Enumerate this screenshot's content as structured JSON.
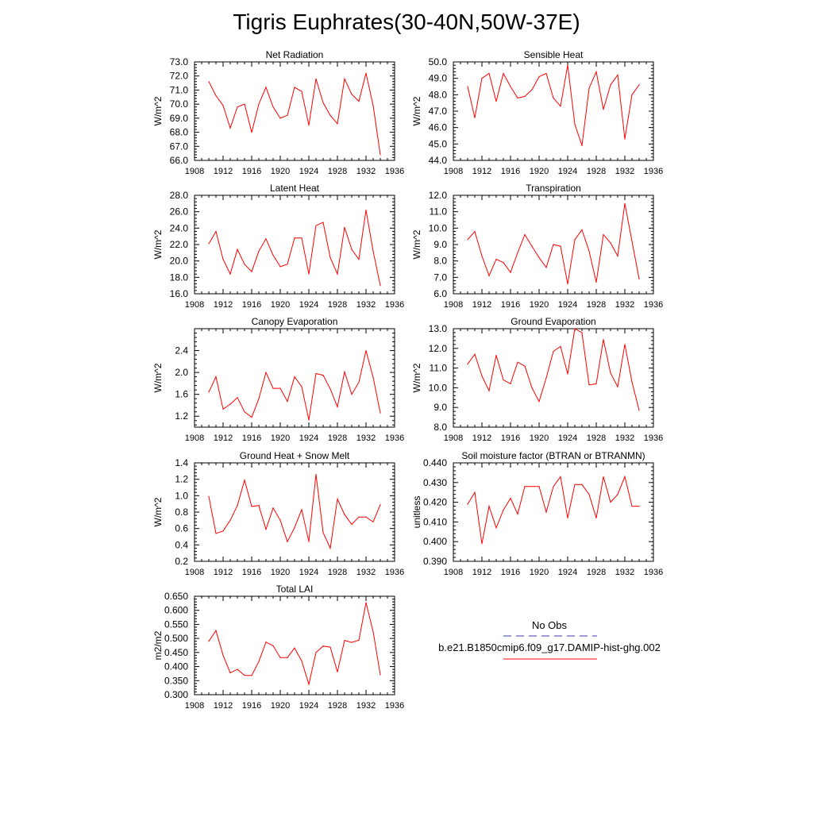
{
  "title": "Tigris Euphrates(30-40N,50W-37E)",
  "colors": {
    "model": "#ff0000",
    "obs": "#3a3aa8",
    "axis": "#000000"
  },
  "legend": {
    "obs_label": "No Obs",
    "model_label": "b.e21.B1850cmip6.f09_g17.DAMIP-hist-ghg.002"
  },
  "chart_data": [
    {
      "type": "line",
      "title": "Net Radiation",
      "ylabel": "W/m^2",
      "xlim": [
        1908,
        1936
      ],
      "xticks": [
        1908,
        1912,
        1916,
        1920,
        1924,
        1928,
        1932,
        1936
      ],
      "ylim": [
        66.0,
        73.0
      ],
      "yticks": [
        "66.0",
        "67.0",
        "68.0",
        "69.0",
        "70.0",
        "71.0",
        "72.0",
        "73.0"
      ],
      "x": [
        1910,
        1911,
        1912,
        1913,
        1914,
        1915,
        1916,
        1917,
        1918,
        1919,
        1920,
        1921,
        1922,
        1923,
        1924,
        1925,
        1926,
        1927,
        1928,
        1929,
        1930,
        1931,
        1932,
        1933,
        1934
      ],
      "series": [
        {
          "values": [
            71.6,
            70.6,
            69.9,
            68.3,
            69.8,
            70.0,
            68.0,
            70.0,
            71.2,
            69.8,
            69.0,
            69.2,
            71.2,
            70.9,
            68.5,
            71.8,
            70.1,
            69.2,
            68.6,
            71.8,
            70.7,
            70.2,
            72.2,
            69.9,
            66.4
          ]
        }
      ]
    },
    {
      "type": "line",
      "title": "Sensible Heat",
      "ylabel": "W/m^2",
      "xlim": [
        1908,
        1936
      ],
      "xticks": [
        1908,
        1912,
        1916,
        1920,
        1924,
        1928,
        1932,
        1936
      ],
      "ylim": [
        44.0,
        50.0
      ],
      "yticks": [
        "44.0",
        "45.0",
        "46.0",
        "47.0",
        "48.0",
        "49.0",
        "50.0"
      ],
      "x": [
        1910,
        1911,
        1912,
        1913,
        1914,
        1915,
        1916,
        1917,
        1918,
        1919,
        1920,
        1921,
        1922,
        1923,
        1924,
        1925,
        1926,
        1927,
        1928,
        1929,
        1930,
        1931,
        1932,
        1933,
        1934
      ],
      "series": [
        {
          "values": [
            48.5,
            46.6,
            49.0,
            49.3,
            47.6,
            49.3,
            48.5,
            47.8,
            47.9,
            48.3,
            49.1,
            49.3,
            47.8,
            47.3,
            49.8,
            46.2,
            44.9,
            48.4,
            49.4,
            47.1,
            48.6,
            49.2,
            45.3,
            48.0,
            48.6
          ]
        }
      ]
    },
    {
      "type": "line",
      "title": "Latent Heat",
      "ylabel": "W/m^2",
      "xlim": [
        1908,
        1936
      ],
      "xticks": [
        1908,
        1912,
        1916,
        1920,
        1924,
        1928,
        1932,
        1936
      ],
      "ylim": [
        16.0,
        28.0
      ],
      "yticks": [
        "16.0",
        "18.0",
        "20.0",
        "22.0",
        "24.0",
        "26.0",
        "28.0"
      ],
      "x": [
        1910,
        1911,
        1912,
        1913,
        1914,
        1915,
        1916,
        1917,
        1918,
        1919,
        1920,
        1921,
        1922,
        1923,
        1924,
        1925,
        1926,
        1927,
        1928,
        1929,
        1930,
        1931,
        1932,
        1933,
        1934
      ],
      "series": [
        {
          "values": [
            22.1,
            23.6,
            20.2,
            18.4,
            21.4,
            19.6,
            18.7,
            21.2,
            22.7,
            20.7,
            19.3,
            19.6,
            22.8,
            22.8,
            18.4,
            24.3,
            24.7,
            20.4,
            18.4,
            24.1,
            21.4,
            20.2,
            26.2,
            21.2,
            17.0
          ]
        }
      ]
    },
    {
      "type": "line",
      "title": "Transpiration",
      "ylabel": "W/m^2",
      "xlim": [
        1908,
        1936
      ],
      "xticks": [
        1908,
        1912,
        1916,
        1920,
        1924,
        1928,
        1932,
        1936
      ],
      "ylim": [
        6.0,
        12.0
      ],
      "yticks": [
        "6.0",
        "7.0",
        "8.0",
        "9.0",
        "10.0",
        "11.0",
        "12.0"
      ],
      "x": [
        1910,
        1911,
        1912,
        1913,
        1914,
        1915,
        1916,
        1917,
        1918,
        1919,
        1920,
        1921,
        1922,
        1923,
        1924,
        1925,
        1926,
        1927,
        1928,
        1929,
        1930,
        1931,
        1932,
        1933,
        1934
      ],
      "series": [
        {
          "values": [
            9.3,
            9.8,
            8.3,
            7.1,
            8.1,
            7.9,
            7.3,
            8.5,
            9.6,
            8.9,
            8.2,
            7.6,
            9.0,
            8.9,
            6.6,
            9.3,
            9.9,
            8.6,
            6.7,
            9.6,
            9.1,
            8.3,
            11.5,
            9.2,
            6.9
          ]
        }
      ]
    },
    {
      "type": "line",
      "title": "Canopy Evaporation",
      "ylabel": "W/m^2",
      "xlim": [
        1908,
        1936
      ],
      "xticks": [
        1908,
        1912,
        1916,
        1920,
        1924,
        1928,
        1932,
        1936
      ],
      "ylim": [
        1.0,
        2.8
      ],
      "yticks": [
        "1.2",
        "1.6",
        "2.0",
        "2.4"
      ],
      "x": [
        1910,
        1911,
        1912,
        1913,
        1914,
        1915,
        1916,
        1917,
        1918,
        1919,
        1920,
        1921,
        1922,
        1923,
        1924,
        1925,
        1926,
        1927,
        1928,
        1929,
        1930,
        1931,
        1932,
        1933,
        1934
      ],
      "series": [
        {
          "values": [
            1.64,
            1.92,
            1.33,
            1.42,
            1.54,
            1.28,
            1.18,
            1.52,
            2.0,
            1.71,
            1.71,
            1.47,
            1.92,
            1.74,
            1.13,
            1.98,
            1.95,
            1.7,
            1.37,
            2.01,
            1.6,
            1.82,
            2.4,
            1.91,
            1.26
          ]
        }
      ]
    },
    {
      "type": "line",
      "title": "Ground Evaporation",
      "ylabel": "W/m^2",
      "xlim": [
        1908,
        1936
      ],
      "xticks": [
        1908,
        1912,
        1916,
        1920,
        1924,
        1928,
        1932,
        1936
      ],
      "ylim": [
        8.0,
        13.0
      ],
      "yticks": [
        "8.0",
        "9.0",
        "10.0",
        "11.0",
        "12.0",
        "13.0"
      ],
      "x": [
        1910,
        1911,
        1912,
        1913,
        1914,
        1915,
        1916,
        1917,
        1918,
        1919,
        1920,
        1921,
        1922,
        1923,
        1924,
        1925,
        1926,
        1927,
        1928,
        1929,
        1930,
        1931,
        1932,
        1933,
        1934
      ],
      "series": [
        {
          "values": [
            11.2,
            11.7,
            10.6,
            9.85,
            11.65,
            10.4,
            10.2,
            11.3,
            11.1,
            10.0,
            9.3,
            10.5,
            11.85,
            12.1,
            10.7,
            13.0,
            12.8,
            10.15,
            10.2,
            12.45,
            10.75,
            10.05,
            12.2,
            10.3,
            8.85
          ]
        }
      ]
    },
    {
      "type": "line",
      "title": "Ground Heat + Snow Melt",
      "ylabel": "W/m^2",
      "xlim": [
        1908,
        1936
      ],
      "xticks": [
        1908,
        1912,
        1916,
        1920,
        1924,
        1928,
        1932,
        1936
      ],
      "ylim": [
        0.2,
        1.4
      ],
      "yticks": [
        "0.2",
        "0.4",
        "0.6",
        "0.8",
        "1.0",
        "1.2",
        "1.4"
      ],
      "x": [
        1910,
        1911,
        1912,
        1913,
        1914,
        1915,
        1916,
        1917,
        1918,
        1919,
        1920,
        1921,
        1922,
        1923,
        1924,
        1925,
        1926,
        1927,
        1928,
        1929,
        1930,
        1931,
        1932,
        1933,
        1934
      ],
      "series": [
        {
          "values": [
            0.99,
            0.54,
            0.57,
            0.7,
            0.88,
            1.19,
            0.87,
            0.88,
            0.59,
            0.85,
            0.7,
            0.44,
            0.61,
            0.83,
            0.44,
            1.26,
            0.55,
            0.36,
            0.96,
            0.77,
            0.65,
            0.74,
            0.74,
            0.68,
            0.89
          ]
        }
      ]
    },
    {
      "type": "line",
      "title": "Soil moisture factor (BTRAN or BTRANMN)",
      "ylabel": "unitless",
      "xlim": [
        1908,
        1936
      ],
      "xticks": [
        1908,
        1912,
        1916,
        1920,
        1924,
        1928,
        1932,
        1936
      ],
      "ylim": [
        0.39,
        0.44
      ],
      "yticks": [
        "0.390",
        "0.400",
        "0.410",
        "0.420",
        "0.430",
        "0.440"
      ],
      "x": [
        1910,
        1911,
        1912,
        1913,
        1914,
        1915,
        1916,
        1917,
        1918,
        1919,
        1920,
        1921,
        1922,
        1923,
        1924,
        1925,
        1926,
        1927,
        1928,
        1929,
        1930,
        1931,
        1932,
        1933,
        1934
      ],
      "series": [
        {
          "values": [
            0.419,
            0.425,
            0.399,
            0.418,
            0.407,
            0.416,
            0.422,
            0.414,
            0.428,
            0.428,
            0.428,
            0.415,
            0.428,
            0.433,
            0.412,
            0.429,
            0.429,
            0.424,
            0.412,
            0.433,
            0.42,
            0.424,
            0.433,
            0.418,
            0.418
          ]
        }
      ]
    },
    {
      "type": "line",
      "title": "Total LAI",
      "ylabel": "m2/m2",
      "xlim": [
        1908,
        1936
      ],
      "xticks": [
        1908,
        1912,
        1916,
        1920,
        1924,
        1928,
        1932,
        1936
      ],
      "ylim": [
        0.3,
        0.65
      ],
      "yticks": [
        "0.300",
        "0.350",
        "0.400",
        "0.450",
        "0.500",
        "0.550",
        "0.600",
        "0.650"
      ],
      "x": [
        1910,
        1911,
        1912,
        1913,
        1914,
        1915,
        1916,
        1917,
        1918,
        1919,
        1920,
        1921,
        1922,
        1923,
        1924,
        1925,
        1926,
        1927,
        1928,
        1929,
        1930,
        1931,
        1932,
        1933,
        1934
      ],
      "series": [
        {
          "values": [
            0.49,
            0.528,
            0.44,
            0.378,
            0.39,
            0.369,
            0.368,
            0.418,
            0.487,
            0.474,
            0.432,
            0.432,
            0.466,
            0.42,
            0.337,
            0.45,
            0.473,
            0.469,
            0.381,
            0.493,
            0.486,
            0.494,
            0.627,
            0.524,
            0.371
          ]
        }
      ]
    }
  ]
}
